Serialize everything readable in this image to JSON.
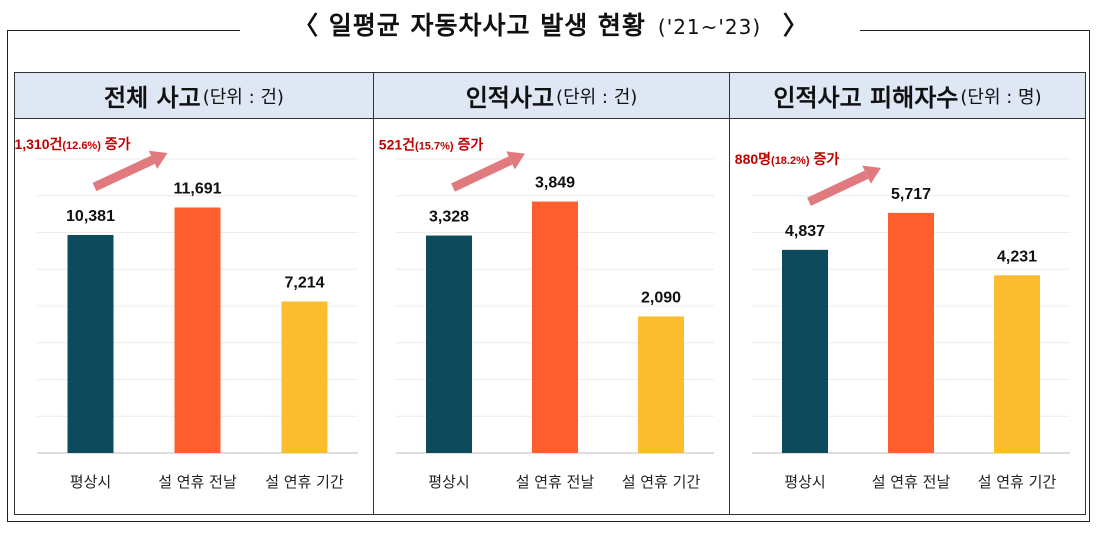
{
  "title": {
    "main": "〈 일평균 자동차사고 발생 현황",
    "period": "('21~'23)",
    "close": "〉"
  },
  "colors": {
    "bar1": "#0d4a5c",
    "bar2": "#ff5f2e",
    "bar3": "#fbbd2d",
    "arrow": "#e07a7f",
    "annotation": "#c00000"
  },
  "chart_data": [
    {
      "type": "bar",
      "title": "전체 사고",
      "unit": "(단위 : 건)",
      "categories": [
        "평상시",
        "설 연휴 전날",
        "설 연휴 기간"
      ],
      "values": [
        10381,
        11691,
        7214
      ],
      "value_labels": [
        "10,381",
        "11,691",
        "7,214"
      ],
      "annotation": {
        "main": "1,310건",
        "pct": "(12.6%)",
        "tail": " 증가"
      },
      "ylim": [
        0,
        14000
      ]
    },
    {
      "type": "bar",
      "title": "인적사고",
      "unit": "(단위 : 건)",
      "categories": [
        "평상시",
        "설 연휴 전날",
        "설 연휴 기간"
      ],
      "values": [
        3328,
        3849,
        2090
      ],
      "value_labels": [
        "3,328",
        "3,849",
        "2,090"
      ],
      "annotation": {
        "main": "521건",
        "pct": "(15.7%)",
        "tail": " 증가"
      },
      "ylim": [
        0,
        4500
      ]
    },
    {
      "type": "bar",
      "title": "인적사고 피해자수",
      "unit": "(단위 : 명)",
      "categories": [
        "평상시",
        "설 연휴 전날",
        "설 연휴 기간"
      ],
      "values": [
        4837,
        5717,
        4231
      ],
      "value_labels": [
        "4,837",
        "5,717",
        "4,231"
      ],
      "annotation": {
        "main": "880명",
        "pct": "(18.2%)",
        "tail": " 증가"
      },
      "ylim": [
        0,
        7000
      ]
    }
  ]
}
